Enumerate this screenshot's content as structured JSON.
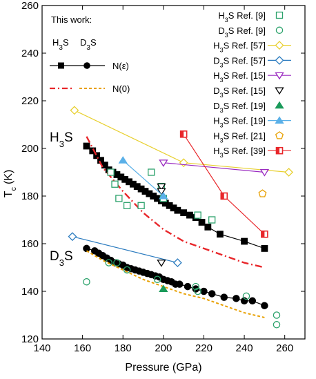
{
  "chart_data": {
    "type": "scatter",
    "xlabel": "Pressure (GPa)",
    "ylabel_main": "T",
    "ylabel_sub": "c",
    "ylabel_unit": "(K)",
    "xlim": [
      140,
      270
    ],
    "ylim": [
      120,
      260
    ],
    "xticks": [
      140,
      160,
      180,
      200,
      220,
      240,
      260
    ],
    "yticks": [
      120,
      140,
      160,
      180,
      200,
      220,
      240,
      260
    ],
    "annotations": {
      "this_work": "This work:",
      "h3s_col": {
        "main": "H",
        "sub": "3",
        "rest": "S"
      },
      "d3s_col": {
        "main": "D",
        "sub": "3",
        "rest": "S"
      },
      "n_eps": "N(ε)",
      "n_zero": "N(0)",
      "h3s_label": {
        "main": "H",
        "sub": "3",
        "rest": "S"
      },
      "d3s_label": {
        "main": "D",
        "sub": "3",
        "rest": "S"
      }
    },
    "series": [
      {
        "id": "h3s-n-eps",
        "style": "line-square",
        "color": "#000000",
        "x": [
          162,
          165,
          167,
          169,
          171,
          173,
          175,
          177,
          179,
          181,
          183,
          185,
          187,
          189,
          191,
          193,
          195,
          197,
          199,
          201,
          203,
          205,
          207,
          210,
          213,
          216,
          219,
          222,
          228,
          240,
          250
        ],
        "y": [
          201,
          199,
          197,
          195,
          193,
          191,
          190,
          189,
          188,
          187,
          186,
          185,
          184,
          183,
          182,
          181,
          180,
          179,
          178,
          177,
          176,
          175,
          174,
          173,
          172,
          171,
          169,
          167,
          164,
          161,
          158
        ]
      },
      {
        "id": "h3s-n-zero",
        "style": "dashdot",
        "color": "#e8262a",
        "x": [
          162,
          170,
          180,
          190,
          200,
          210,
          220,
          230,
          240,
          250
        ],
        "y": [
          205,
          192,
          182,
          173,
          166,
          161,
          158,
          155,
          152,
          150
        ]
      },
      {
        "id": "d3s-n-eps",
        "style": "line-circle",
        "color": "#000000",
        "x": [
          162,
          166,
          168,
          170,
          172,
          174,
          176,
          178,
          180,
          182,
          184,
          186,
          188,
          190,
          192,
          194,
          196,
          198,
          200,
          202,
          204,
          206,
          208,
          212,
          216,
          220,
          224,
          230,
          236,
          240,
          244,
          250
        ],
        "y": [
          158,
          157,
          156,
          155,
          154,
          153,
          152,
          151.5,
          151,
          150,
          149.5,
          149,
          148.5,
          148,
          147.5,
          147,
          146.5,
          146,
          145,
          144.5,
          144,
          143,
          143,
          142,
          141,
          140,
          139,
          137.5,
          137,
          136,
          136,
          134
        ]
      },
      {
        "id": "d3s-n-zero",
        "style": "dashed",
        "color": "#e8a000",
        "x": [
          162,
          170,
          180,
          190,
          200,
          210,
          220,
          230,
          240,
          250
        ],
        "y": [
          157,
          153,
          149,
          145,
          142,
          139,
          137,
          134,
          131,
          129
        ]
      },
      {
        "name_main": "H",
        "name_sub": "3",
        "name_rest": "S Ref. [9]",
        "style": "open-square",
        "color": "#2ba26b",
        "x": [
          174,
          176,
          178,
          182,
          189,
          194,
          199,
          200,
          217,
          224
        ],
        "y": [
          190,
          185,
          179,
          176,
          176,
          190,
          184,
          179,
          172,
          170
        ]
      },
      {
        "name_main": "D",
        "name_sub": "3",
        "name_rest": "S Ref. [9]",
        "style": "open-circle",
        "color": "#2ba26b",
        "x": [
          162,
          173,
          177,
          182,
          197,
          216,
          217,
          241,
          256,
          256
        ],
        "y": [
          144,
          152,
          152,
          149,
          145,
          142,
          140,
          138,
          130,
          126
        ]
      },
      {
        "name_main": "H",
        "name_sub": "3",
        "name_rest": "S Ref. [57]",
        "style": "line-open-diamond",
        "color": "#e8d030",
        "x": [
          156,
          210,
          262
        ],
        "y": [
          216,
          194,
          190
        ]
      },
      {
        "name_main": "D",
        "name_sub": "3",
        "name_rest": "S Ref. [57]",
        "style": "line-open-diamond",
        "color": "#2a7bbf",
        "x": [
          155,
          207
        ],
        "y": [
          163,
          152
        ]
      },
      {
        "name_main": "H",
        "name_sub": "3",
        "name_rest": "S Ref. [15]",
        "style": "line-open-triangle-down",
        "color": "#9a2ac0",
        "x": [
          200,
          250
        ],
        "y": [
          194,
          190
        ]
      },
      {
        "name_main": "D",
        "name_sub": "3",
        "name_rest": "S Ref. [15]",
        "style": "open-triangle-down",
        "color": "#000000",
        "x": [
          199,
          199,
          199
        ],
        "y": [
          184,
          182,
          152
        ]
      },
      {
        "name_main": "D",
        "name_sub": "3",
        "name_rest": "S Ref. [19]",
        "style": "filled-triangle-up",
        "color": "#1a9a5a",
        "x": [
          200
        ],
        "y": [
          141
        ]
      },
      {
        "name_main": "H",
        "name_sub": "3",
        "name_rest": "S Ref. [19]",
        "style": "line-filled-triangle-up",
        "color": "#5ab0e8",
        "x": [
          180,
          200
        ],
        "y": [
          195,
          180
        ]
      },
      {
        "name_main": "H",
        "name_sub": "3",
        "name_rest": "S Ref. [21]",
        "style": "open-pentagon",
        "color": "#e8a000",
        "x": [
          249
        ],
        "y": [
          181
        ]
      },
      {
        "name_main": "H",
        "name_sub": "3",
        "name_rest": "S  Ref. [39]",
        "style": "line-half-square",
        "color": "#e8262a",
        "x": [
          210,
          230,
          250
        ],
        "y": [
          206,
          180,
          164
        ]
      }
    ]
  }
}
